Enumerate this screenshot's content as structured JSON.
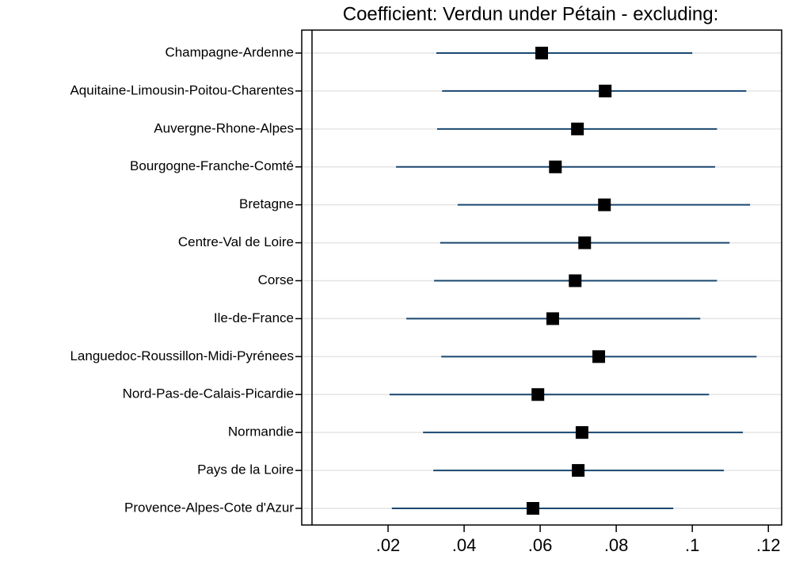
{
  "chart_data": {
    "type": "coefplot",
    "title": "Coefficient: Verdun under Pétain - excluding:",
    "categories": [
      "Champagne-Ardenne",
      "Aquitaine-Limousin-Poitou-Charentes",
      "Auvergne-Rhone-Alpes",
      "Bourgogne-Franche-Comté",
      "Bretagne",
      "Centre-Val de Loire",
      "Corse",
      "Ile-de-France",
      "Languedoc-Roussillon-Midi-Pyrénees",
      "Nord-Pas-de-Calais-Picardie",
      "Normandie",
      "Pays de la Loire",
      "Provence-Alpes-Cote d'Azur"
    ],
    "values": [
      0.0604,
      0.0771,
      0.0698,
      0.064,
      0.0769,
      0.0717,
      0.0692,
      0.0633,
      0.0754,
      0.0594,
      0.071,
      0.07,
      0.0581
    ],
    "lower": [
      0.0327,
      0.0342,
      0.0329,
      0.0221,
      0.0383,
      0.0337,
      0.0321,
      0.0248,
      0.034,
      0.0204,
      0.0292,
      0.0319,
      0.021
    ],
    "upper": [
      0.1,
      0.1142,
      0.1065,
      0.106,
      0.1152,
      0.1098,
      0.1065,
      0.1021,
      0.1169,
      0.1044,
      0.1133,
      0.1083,
      0.095
    ],
    "color": "#000000",
    "ci_color": "#1a476f",
    "xlim": [
      -0.0027,
      0.1235
    ],
    "xticks": [
      {
        "value": 0.02,
        "label": ".02"
      },
      {
        "value": 0.04,
        "label": ".04"
      },
      {
        "value": 0.06,
        "label": ".06"
      },
      {
        "value": 0.08,
        "label": ".08"
      },
      {
        "value": 0.1,
        "label": ".1"
      },
      {
        "value": 0.12,
        "label": ".12"
      }
    ],
    "grid": true
  }
}
